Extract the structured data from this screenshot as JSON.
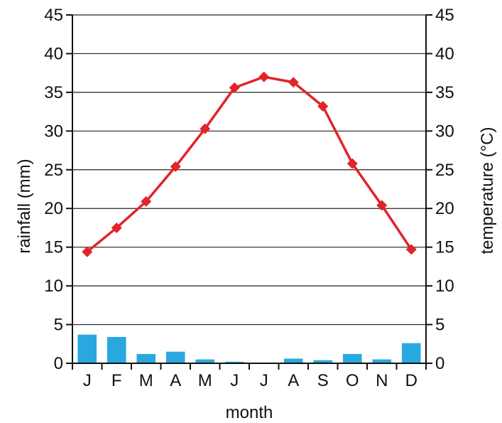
{
  "chart_data": {
    "type": "bar+line",
    "categories": [
      "J",
      "F",
      "M",
      "A",
      "M",
      "J",
      "J",
      "A",
      "S",
      "O",
      "N",
      "D"
    ],
    "xlabel": "month",
    "ylabel_left": "rainfall (mm)",
    "ylabel_right": "temperature (°C)",
    "ylim": [
      0,
      45
    ],
    "yticks": [
      0,
      5,
      10,
      15,
      20,
      25,
      30,
      35,
      40,
      45
    ],
    "grid": true,
    "series": [
      {
        "kind": "bar",
        "axis": "left",
        "values": [
          3.7,
          3.4,
          1.2,
          1.5,
          0.5,
          0.2,
          0.0,
          0.6,
          0.4,
          1.2,
          0.5,
          2.6
        ],
        "color": "#29a8e0"
      },
      {
        "kind": "line",
        "axis": "right",
        "values": [
          14.4,
          17.5,
          20.9,
          25.4,
          30.3,
          35.6,
          37.0,
          36.3,
          33.2,
          25.8,
          20.4,
          14.7
        ],
        "color": "#e1242a"
      }
    ]
  }
}
